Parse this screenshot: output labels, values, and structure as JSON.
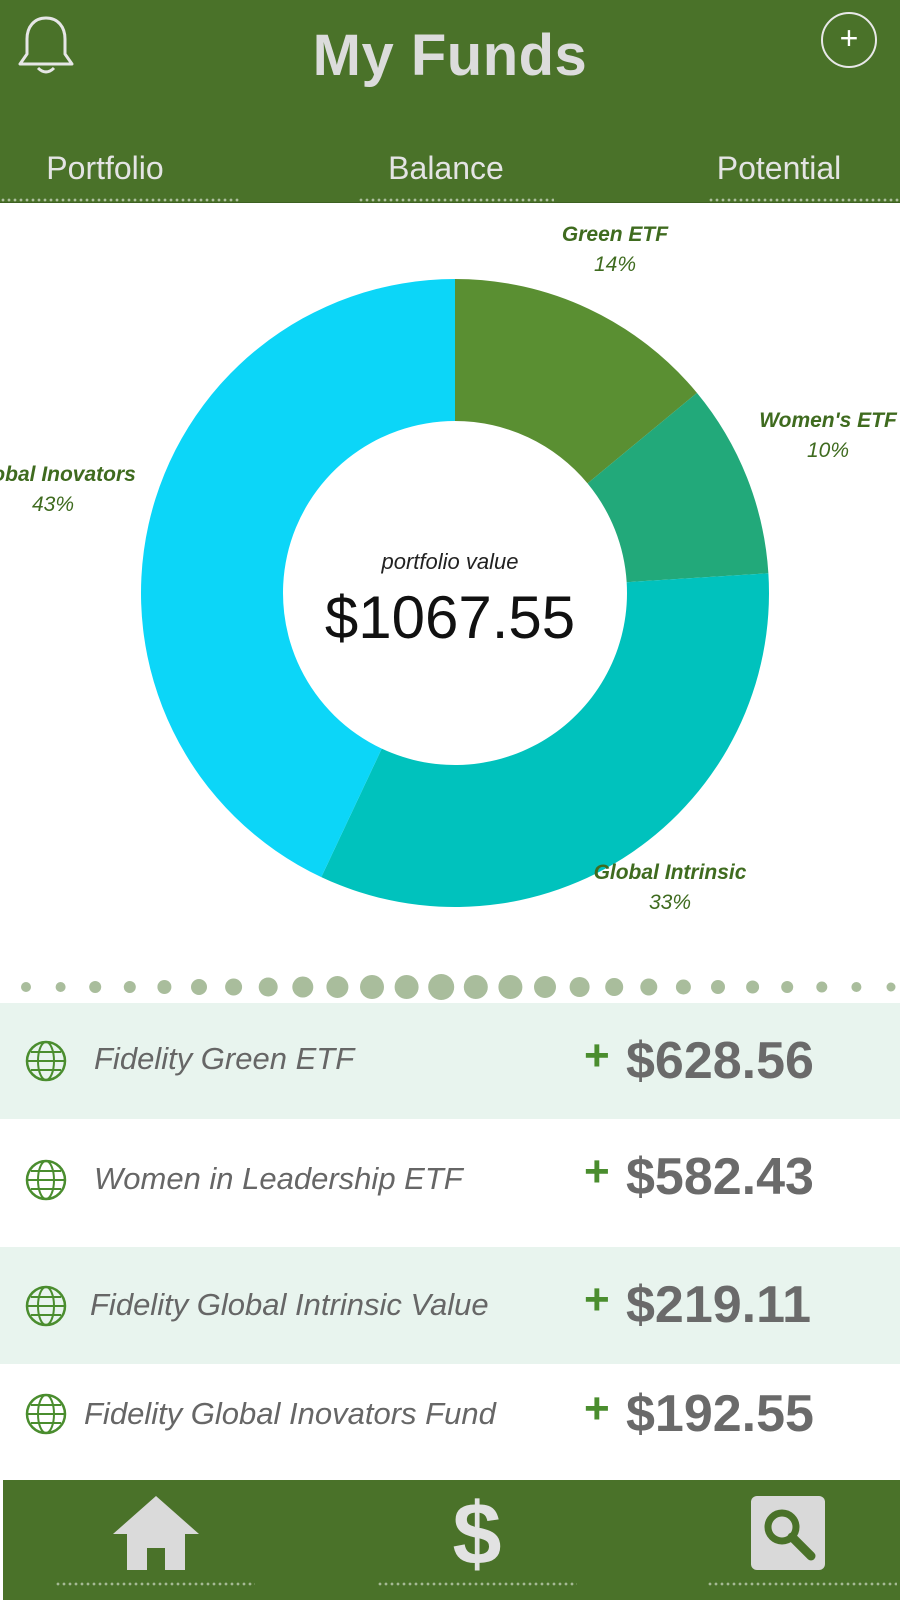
{
  "header": {
    "title": "My Funds",
    "add_icon": "plus-circle-icon",
    "bell_icon": "bell-icon"
  },
  "tabs": [
    {
      "label": "Portfolio"
    },
    {
      "label": "Balance"
    },
    {
      "label": "Potential"
    }
  ],
  "summary": {
    "caption": "portfolio value",
    "value": "$1067.55"
  },
  "chart_data": {
    "type": "pie",
    "style": "donut",
    "categories": [
      "Green ETF",
      "Women's ETF",
      "Global Intrinsic",
      "Global Inovators"
    ],
    "values": [
      14,
      10,
      33,
      43
    ],
    "labels": [
      "14%",
      "10%",
      "33%",
      "43%"
    ],
    "colors": [
      "#5a8f32",
      "#22a97a",
      "#00c2bd",
      "#0cd6f8"
    ],
    "center_caption": "portfolio value",
    "center_value": "$1067.55"
  },
  "funds": [
    {
      "name": "Fidelity Green ETF",
      "sign": "+",
      "amount": "$628.56"
    },
    {
      "name": "Women in Leadership ETF",
      "sign": "+",
      "amount": "$582.43"
    },
    {
      "name": "Fidelity Global Intrinsic Value",
      "sign": "+",
      "amount": "$219.11"
    },
    {
      "name": "Fidelity Global Inovators Fund",
      "sign": "+",
      "amount": "$192.55"
    }
  ],
  "bottom_nav": [
    {
      "icon": "home-icon"
    },
    {
      "icon": "dollar-icon"
    },
    {
      "icon": "search-icon"
    }
  ],
  "colors": {
    "brand_green": "#4a7229",
    "positive": "#4a8d2e",
    "row_shade": "#e8f4ee"
  }
}
